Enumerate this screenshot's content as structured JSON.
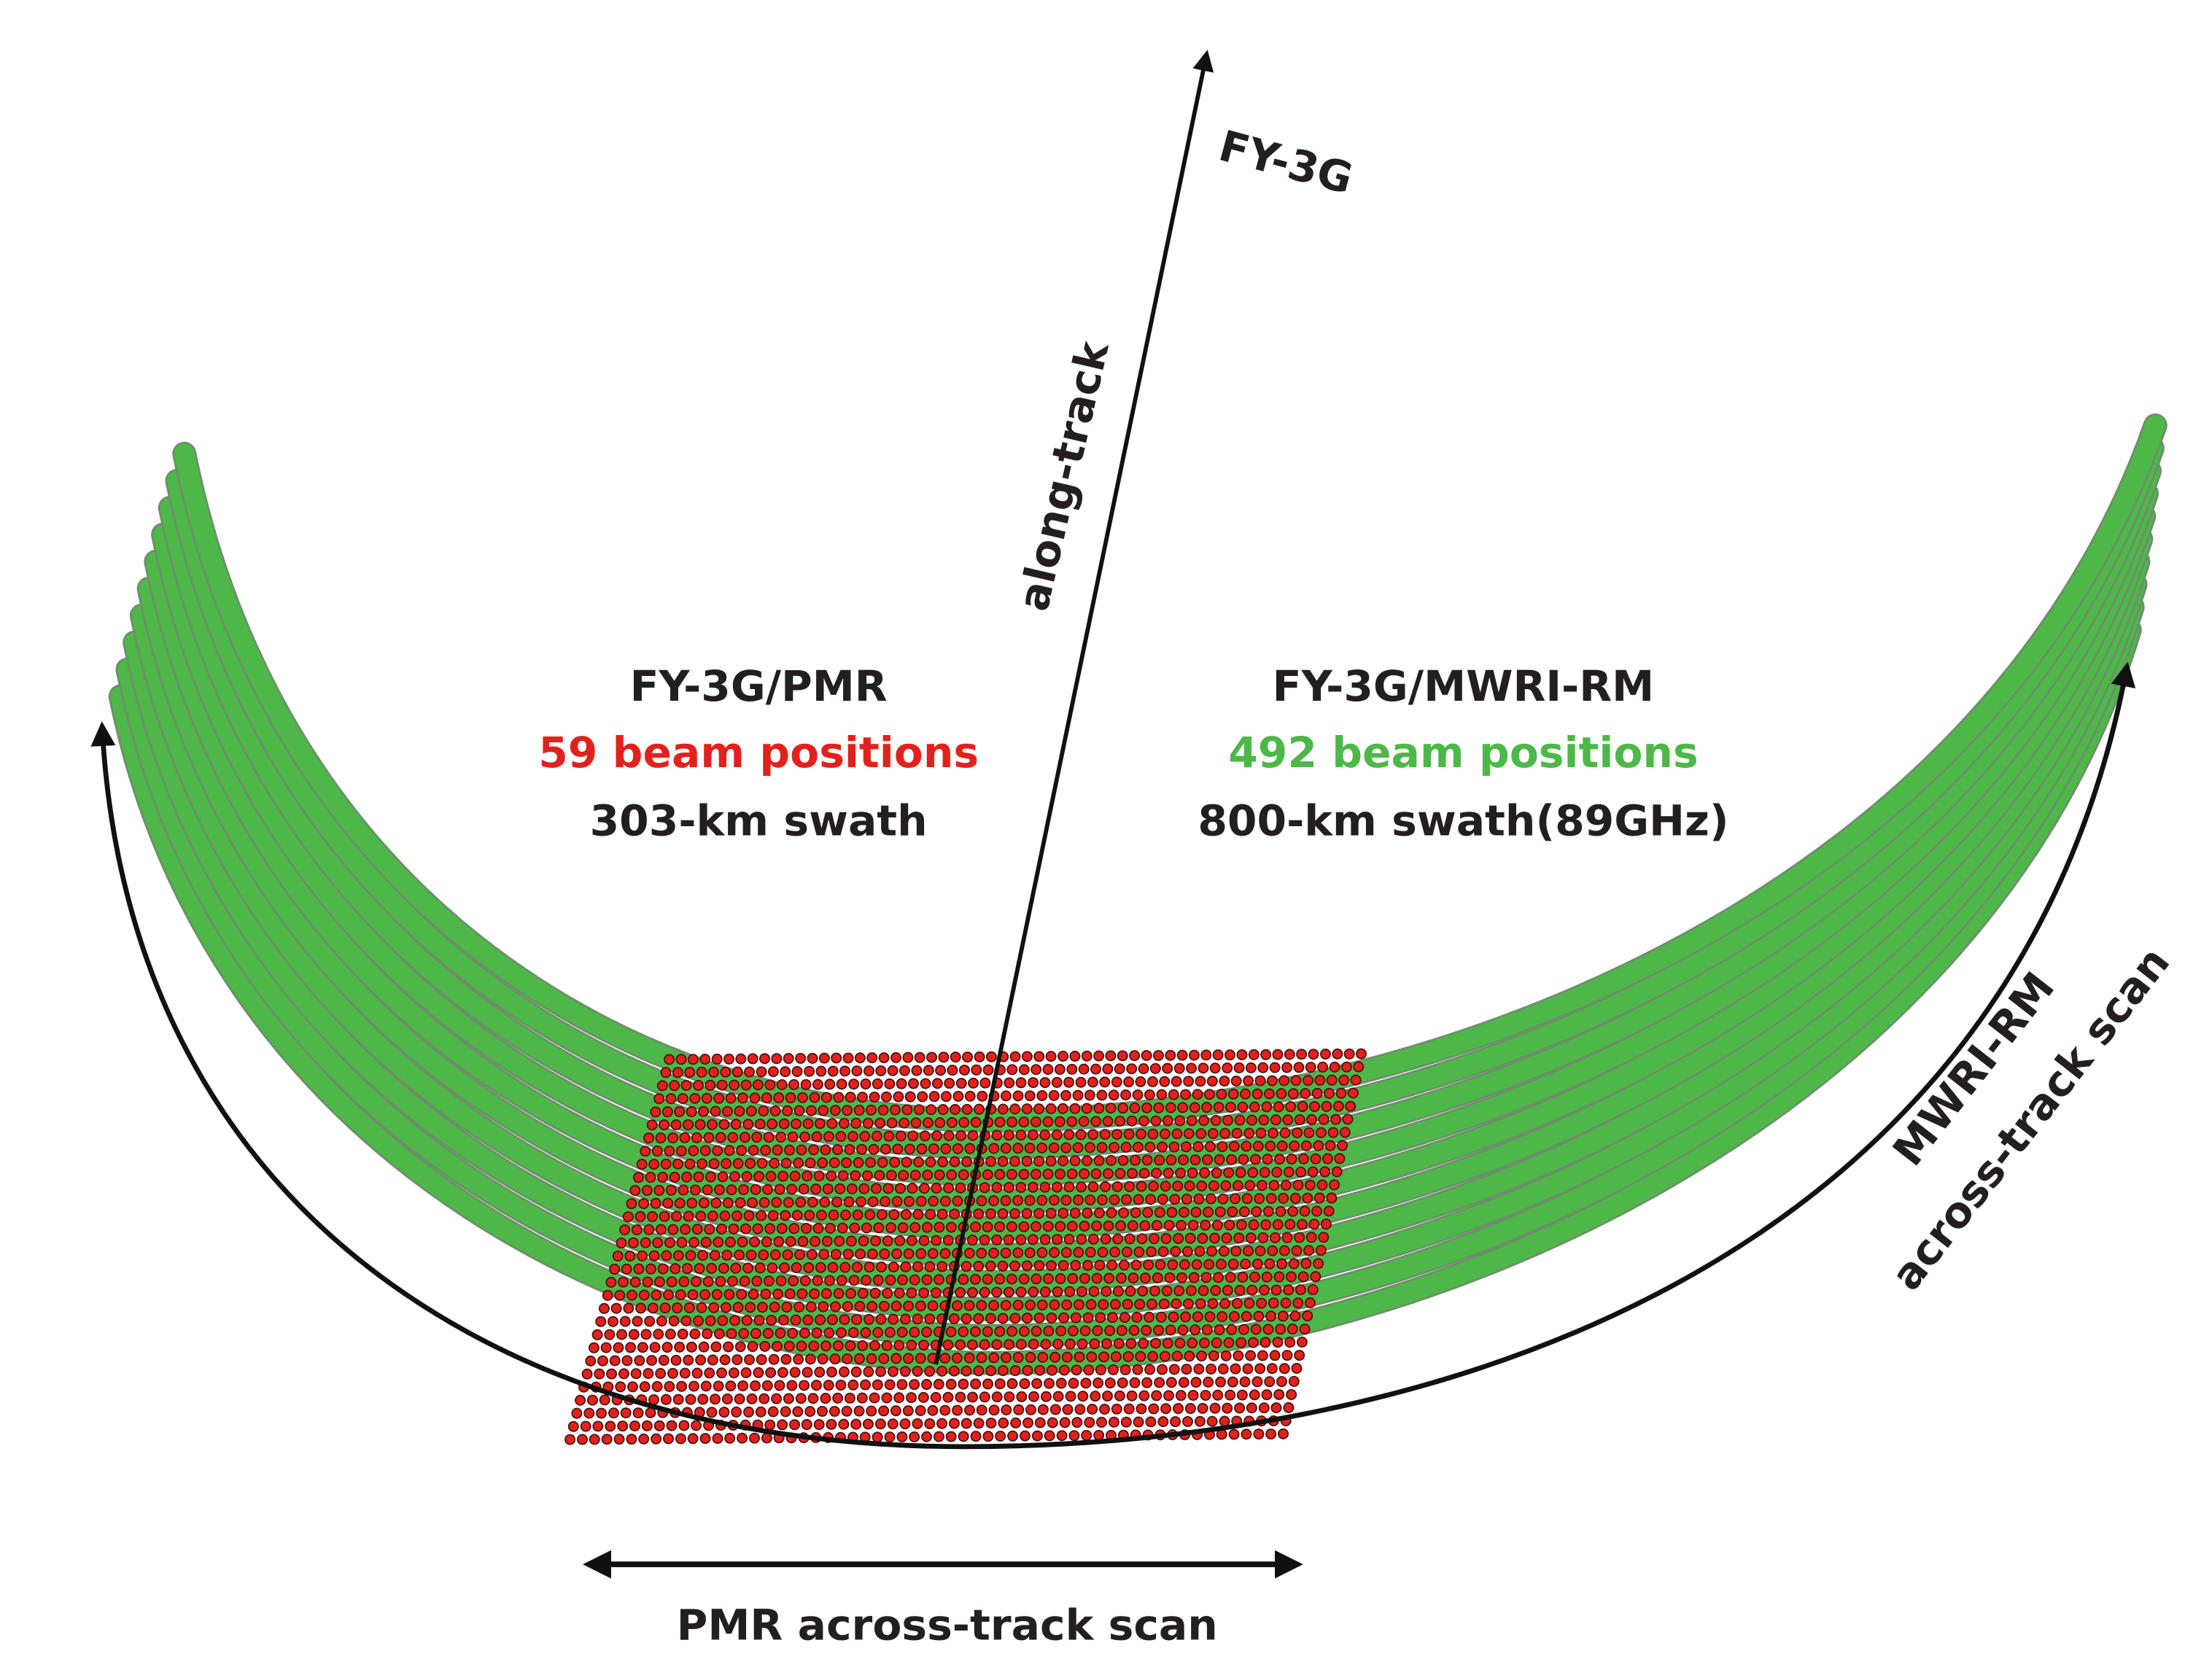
{
  "satellite_label": "FY-3G",
  "along_track_label": "along-track",
  "pmr": {
    "title": "FY-3G/PMR",
    "beams": "59 beam positions",
    "swath": "303-km swath",
    "beam_count": 59,
    "color": "#e3211c"
  },
  "mwri": {
    "title": "FY-3G/MWRI-RM",
    "beams": "492 beam positions",
    "swath": "800-km swath(89GHz)",
    "color": "#4db848"
  },
  "mwri_scan_label": {
    "line1": "MWRI-RM",
    "line2": "across-track scan"
  },
  "pmr_scan_label": "PMR across-track scan"
}
